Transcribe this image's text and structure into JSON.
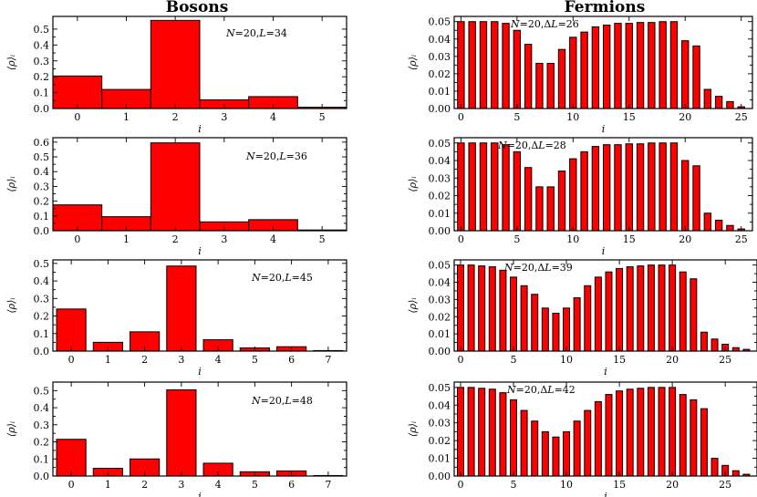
{
  "figure": {
    "column_titles": [
      "Bosons",
      "Fermions"
    ],
    "bar_color": "#ff0000"
  },
  "chart_data": [
    {
      "type": "bar",
      "panel": "bosons-1",
      "title": "Bosons",
      "annotation": "N=20,L=34",
      "xlabel": "i",
      "ylabel": "⟨ρ⟩ᵢ",
      "categories": [
        0,
        1,
        2,
        3,
        4,
        5
      ],
      "values": [
        0.205,
        0.12,
        0.555,
        0.055,
        0.075,
        0.008
      ],
      "ylim": [
        0,
        0.58
      ],
      "yticks": [
        0.0,
        0.1,
        0.2,
        0.3,
        0.4,
        0.5
      ],
      "ytick_labels": [
        "0.0",
        "0.1",
        "0.2",
        "0.3",
        "0.4",
        "0.5"
      ],
      "xlim": [
        -0.5,
        5.5
      ],
      "xticks": [
        0,
        1,
        2,
        3,
        4,
        5
      ],
      "xtick_labels": [
        "0",
        "1",
        "2",
        "3",
        "4",
        "5"
      ],
      "bar_width": 1.0
    },
    {
      "type": "bar",
      "panel": "fermions-1",
      "title": "Fermions",
      "annotation": "N=20,ΔL=26",
      "xlabel": "i",
      "ylabel": "⟨ρ⟩ᵢ",
      "categories": [
        0,
        1,
        2,
        3,
        4,
        5,
        6,
        7,
        8,
        9,
        10,
        11,
        12,
        13,
        14,
        15,
        16,
        17,
        18,
        19,
        20,
        21,
        22,
        23,
        24,
        25
      ],
      "values": [
        0.05,
        0.05,
        0.05,
        0.05,
        0.049,
        0.045,
        0.037,
        0.026,
        0.026,
        0.034,
        0.041,
        0.044,
        0.047,
        0.048,
        0.049,
        0.049,
        0.0495,
        0.0495,
        0.05,
        0.05,
        0.039,
        0.036,
        0.011,
        0.007,
        0.004,
        0.001
      ],
      "ylim": [
        0,
        0.053
      ],
      "yticks": [
        0.0,
        0.01,
        0.02,
        0.03,
        0.04,
        0.05
      ],
      "ytick_labels": [
        "0.00",
        "0.01",
        "0.02",
        "0.03",
        "0.04",
        "0.05"
      ],
      "xlim": [
        -0.6,
        26.0
      ],
      "xticks": [
        0,
        5,
        10,
        15,
        20,
        25
      ],
      "xtick_labels": [
        "0",
        "5",
        "10",
        "15",
        "20",
        "25"
      ],
      "bar_width": 0.6
    },
    {
      "type": "bar",
      "panel": "bosons-2",
      "title": "",
      "annotation": "N=20,L=36",
      "xlabel": "i",
      "ylabel": "⟨ρ⟩ᵢ",
      "categories": [
        0,
        1,
        2,
        3,
        4,
        5
      ],
      "values": [
        0.175,
        0.095,
        0.595,
        0.06,
        0.075,
        0.005
      ],
      "ylim": [
        0,
        0.63
      ],
      "yticks": [
        0.0,
        0.1,
        0.2,
        0.3,
        0.4,
        0.5,
        0.6
      ],
      "ytick_labels": [
        "0.0",
        "0.1",
        "0.2",
        "0.3",
        "0.4",
        "0.5",
        "0.6"
      ],
      "xlim": [
        -0.5,
        5.5
      ],
      "xticks": [
        0,
        1,
        2,
        3,
        4,
        5
      ],
      "xtick_labels": [
        "0",
        "1",
        "2",
        "3",
        "4",
        "5"
      ],
      "bar_width": 1.0
    },
    {
      "type": "bar",
      "panel": "fermions-2",
      "title": "",
      "annotation": "N=20,ΔL=28",
      "xlabel": "i",
      "ylabel": "⟨ρ⟩ᵢ",
      "categories": [
        0,
        1,
        2,
        3,
        4,
        5,
        6,
        7,
        8,
        9,
        10,
        11,
        12,
        13,
        14,
        15,
        16,
        17,
        18,
        19,
        20,
        21,
        22,
        23,
        24,
        25
      ],
      "values": [
        0.05,
        0.05,
        0.05,
        0.05,
        0.049,
        0.045,
        0.036,
        0.025,
        0.025,
        0.034,
        0.041,
        0.045,
        0.048,
        0.049,
        0.049,
        0.0495,
        0.0495,
        0.05,
        0.05,
        0.05,
        0.04,
        0.037,
        0.01,
        0.006,
        0.003,
        0.001
      ],
      "ylim": [
        0,
        0.053
      ],
      "yticks": [
        0.0,
        0.01,
        0.02,
        0.03,
        0.04,
        0.05
      ],
      "ytick_labels": [
        "0.00",
        "0.01",
        "0.02",
        "0.03",
        "0.04",
        "0.05"
      ],
      "xlim": [
        -0.6,
        26.0
      ],
      "xticks": [
        0,
        5,
        10,
        15,
        20,
        25
      ],
      "xtick_labels": [
        "0",
        "5",
        "10",
        "15",
        "20",
        "25"
      ],
      "bar_width": 0.6
    },
    {
      "type": "bar",
      "panel": "bosons-3",
      "title": "",
      "annotation": "N=20,L=45",
      "xlabel": "i",
      "ylabel": "⟨ρ⟩ᵢ",
      "categories": [
        0,
        1,
        2,
        3,
        4,
        5,
        6,
        7
      ],
      "values": [
        0.24,
        0.05,
        0.11,
        0.485,
        0.065,
        0.018,
        0.025,
        0.003
      ],
      "ylim": [
        0,
        0.52
      ],
      "yticks": [
        0.0,
        0.1,
        0.2,
        0.3,
        0.4,
        0.5
      ],
      "ytick_labels": [
        "0.0",
        "0.1",
        "0.2",
        "0.3",
        "0.4",
        "0.5"
      ],
      "xlim": [
        -0.5,
        7.5
      ],
      "xticks": [
        0,
        1,
        2,
        3,
        4,
        5,
        6,
        7
      ],
      "xtick_labels": [
        "0",
        "1",
        "2",
        "3",
        "4",
        "5",
        "6",
        "7"
      ],
      "bar_width": 0.8
    },
    {
      "type": "bar",
      "panel": "fermions-3",
      "title": "",
      "annotation": "N=20,ΔL=39",
      "xlabel": "i",
      "ylabel": "⟨ρ⟩ᵢ",
      "categories": [
        0,
        1,
        2,
        3,
        4,
        5,
        6,
        7,
        8,
        9,
        10,
        11,
        12,
        13,
        14,
        15,
        16,
        17,
        18,
        19,
        20,
        21,
        22,
        23,
        24,
        25,
        26,
        27
      ],
      "values": [
        0.05,
        0.05,
        0.0495,
        0.049,
        0.047,
        0.043,
        0.038,
        0.033,
        0.025,
        0.022,
        0.025,
        0.031,
        0.038,
        0.043,
        0.046,
        0.048,
        0.049,
        0.0495,
        0.05,
        0.05,
        0.05,
        0.046,
        0.042,
        0.011,
        0.007,
        0.004,
        0.002,
        0.001
      ],
      "ylim": [
        0,
        0.053
      ],
      "yticks": [
        0.0,
        0.01,
        0.02,
        0.03,
        0.04,
        0.05
      ],
      "ytick_labels": [
        "0.00",
        "0.01",
        "0.02",
        "0.03",
        "0.04",
        "0.05"
      ],
      "xlim": [
        -0.6,
        28.0
      ],
      "xticks": [
        0,
        5,
        10,
        15,
        20,
        25
      ],
      "xtick_labels": [
        "0",
        "5",
        "10",
        "15",
        "20",
        "25"
      ],
      "bar_width": 0.6
    },
    {
      "type": "bar",
      "panel": "bosons-4",
      "title": "",
      "annotation": "N=20,L=48",
      "xlabel": "i",
      "ylabel": "⟨ρ⟩ᵢ",
      "categories": [
        0,
        1,
        2,
        3,
        4,
        5,
        6,
        7
      ],
      "values": [
        0.215,
        0.045,
        0.1,
        0.505,
        0.075,
        0.025,
        0.03,
        0.003
      ],
      "ylim": [
        0,
        0.55
      ],
      "yticks": [
        0.0,
        0.1,
        0.2,
        0.3,
        0.4,
        0.5
      ],
      "ytick_labels": [
        "0.0",
        "0.1",
        "0.2",
        "0.3",
        "0.4",
        "0.5"
      ],
      "xlim": [
        -0.5,
        7.5
      ],
      "xticks": [
        0,
        1,
        2,
        3,
        4,
        5,
        6,
        7
      ],
      "xtick_labels": [
        "0",
        "1",
        "2",
        "3",
        "4",
        "5",
        "6",
        "7"
      ],
      "bar_width": 0.8
    },
    {
      "type": "bar",
      "panel": "fermions-4",
      "title": "",
      "annotation": "N=20,ΔL=42",
      "xlabel": "i",
      "ylabel": "⟨ρ⟩ᵢ",
      "categories": [
        0,
        1,
        2,
        3,
        4,
        5,
        6,
        7,
        8,
        9,
        10,
        11,
        12,
        13,
        14,
        15,
        16,
        17,
        18,
        19,
        20,
        21,
        22,
        23,
        24,
        25,
        26,
        27
      ],
      "values": [
        0.05,
        0.05,
        0.0495,
        0.049,
        0.047,
        0.043,
        0.037,
        0.031,
        0.025,
        0.022,
        0.025,
        0.031,
        0.037,
        0.042,
        0.046,
        0.048,
        0.049,
        0.0495,
        0.05,
        0.05,
        0.05,
        0.046,
        0.043,
        0.038,
        0.01,
        0.006,
        0.003,
        0.001
      ],
      "ylim": [
        0,
        0.053
      ],
      "yticks": [
        0.0,
        0.01,
        0.02,
        0.03,
        0.04,
        0.05
      ],
      "ytick_labels": [
        "0.00",
        "0.01",
        "0.02",
        "0.03",
        "0.04",
        "0.05"
      ],
      "xlim": [
        -0.6,
        28.0
      ],
      "xticks": [
        0,
        5,
        10,
        15,
        20,
        25
      ],
      "xtick_labels": [
        "0",
        "5",
        "10",
        "15",
        "20",
        "25"
      ],
      "bar_width": 0.6
    }
  ]
}
